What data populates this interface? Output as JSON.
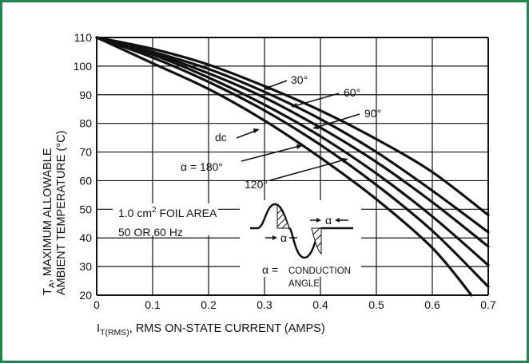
{
  "chart_data": {
    "type": "line",
    "xlabel_prefix": "I",
    "xlabel_sub": "T(RMS)",
    "xlabel_rest": ", RMS ON-STATE CURRENT (AMPS)",
    "ylabel_line1_prefix": "T",
    "ylabel_line1_sub": "A",
    "ylabel_line1_rest": ", MAXIMUM ALLOWABLE",
    "ylabel_line2": "AMBIENT TEMPERATURE (°C)",
    "xlim": [
      0,
      0.7
    ],
    "ylim": [
      20,
      110
    ],
    "x_ticks": [
      "0",
      "0.1",
      "0.2",
      "0.3",
      "0.4",
      "0.5",
      "0.6",
      "0.7"
    ],
    "y_ticks": [
      "20",
      "30",
      "40",
      "50",
      "60",
      "70",
      "80",
      "90",
      "100",
      "110"
    ],
    "grid": true,
    "series": [
      {
        "name": "30°",
        "x": [
          0,
          0.1,
          0.2,
          0.3,
          0.4,
          0.5,
          0.6,
          0.7
        ],
        "y": [
          110,
          106,
          100.5,
          93,
          84.5,
          74.5,
          63,
          48
        ]
      },
      {
        "name": "60°",
        "x": [
          0,
          0.1,
          0.2,
          0.3,
          0.4,
          0.5,
          0.6,
          0.7
        ],
        "y": [
          110,
          105,
          99,
          91,
          81.5,
          70,
          56.5,
          42
        ]
      },
      {
        "name": "90°",
        "x": [
          0,
          0.1,
          0.2,
          0.3,
          0.4,
          0.5,
          0.6,
          0.7
        ],
        "y": [
          110,
          104.5,
          97.5,
          89,
          78.5,
          66.5,
          52.5,
          37
        ]
      },
      {
        "name": "120°",
        "x": [
          0,
          0.1,
          0.2,
          0.3,
          0.4,
          0.5,
          0.6,
          0.7
        ],
        "y": [
          110,
          104,
          96,
          86.5,
          75.5,
          62.5,
          47.5,
          30.5
        ]
      },
      {
        "name": "α = 180°",
        "x": [
          0,
          0.1,
          0.2,
          0.3,
          0.4,
          0.5,
          0.6,
          0.7
        ],
        "y": [
          110,
          103,
          94.5,
          84.5,
          72.5,
          58.5,
          42.5,
          23
        ]
      },
      {
        "name": "dc",
        "x": [
          0,
          0.1,
          0.2,
          0.3,
          0.4,
          0.5,
          0.6,
          0.67
        ],
        "y": [
          110,
          101,
          92,
          81,
          68,
          53.5,
          36.5,
          20
        ]
      }
    ],
    "annotations": {
      "foil_line1_a": "1.0 cm",
      "foil_line1_sup": "2",
      "foil_line1_b": " FOIL AREA",
      "foil_line2": "50 OR 60 Hz",
      "alpha_symbol": "α",
      "conduction_eq": "α =",
      "conduction_word1": "CONDUCTION",
      "conduction_word2": "ANGLE"
    }
  },
  "colors": {
    "frame": "#1c8a4e",
    "ink": "#111111"
  }
}
